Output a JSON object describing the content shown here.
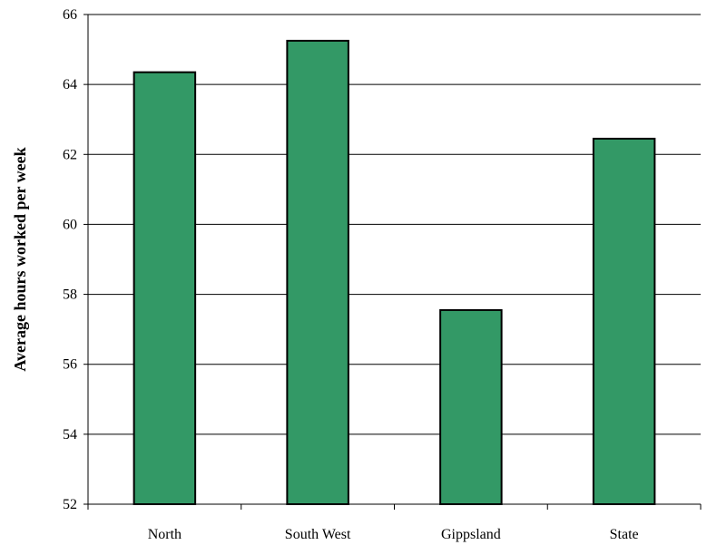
{
  "chart_data": {
    "type": "bar",
    "title": "",
    "xlabel": "",
    "ylabel": "Average hours worked per week",
    "categories": [
      "North",
      "South West",
      "Gippsland",
      "State"
    ],
    "values": [
      64.35,
      65.25,
      57.55,
      62.45
    ],
    "ylim": [
      52,
      66
    ],
    "yticks": [
      52,
      54,
      56,
      58,
      60,
      62,
      64,
      66
    ],
    "grid": "horizontal",
    "legend": "none",
    "bar_color": "#339966",
    "bar_edge_color": "#000000",
    "grid_color": "#000000"
  }
}
